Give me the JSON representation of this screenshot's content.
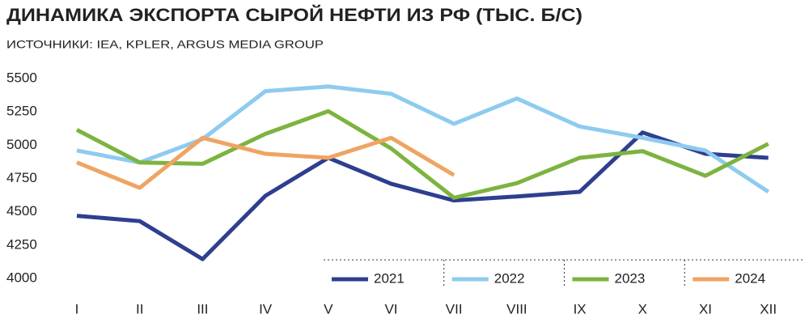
{
  "chart_data": {
    "type": "line",
    "title": "ДИНАМИКА ЭКСПОРТА СЫРОЙ НЕФТИ ИЗ РФ (ТЫС. Б/С)",
    "subtitle": "ИСТОЧНИКИ: IEA, KPLER, ARGUS MEDIA GROUP",
    "categories": [
      "I",
      "II",
      "III",
      "IV",
      "V",
      "VI",
      "VII",
      "VIII",
      "IX",
      "X",
      "XI",
      "XII"
    ],
    "series": [
      {
        "name": "2021",
        "color": "#2e3f8f",
        "values": [
          4470,
          4430,
          4145,
          4620,
          4905,
          4710,
          4585,
          4615,
          4650,
          5095,
          4935,
          4905
        ]
      },
      {
        "name": "2022",
        "color": "#8ecbef",
        "values": [
          4960,
          4870,
          5045,
          5405,
          5440,
          5385,
          5160,
          5350,
          5140,
          5055,
          4960,
          4650
        ]
      },
      {
        "name": "2023",
        "color": "#7db33f",
        "values": [
          5115,
          4870,
          4860,
          5085,
          5255,
          4975,
          4605,
          4715,
          4905,
          4955,
          4770,
          5010
        ]
      },
      {
        "name": "2024",
        "color": "#efa463",
        "values": [
          4870,
          4680,
          5055,
          4935,
          4905,
          5055,
          4775,
          null,
          null,
          null,
          null,
          null
        ]
      }
    ],
    "ylim": [
      4000,
      5500
    ],
    "yticks": [
      4000,
      4250,
      4500,
      4750,
      5000,
      5250,
      5500
    ],
    "legend": "bottom-right"
  }
}
